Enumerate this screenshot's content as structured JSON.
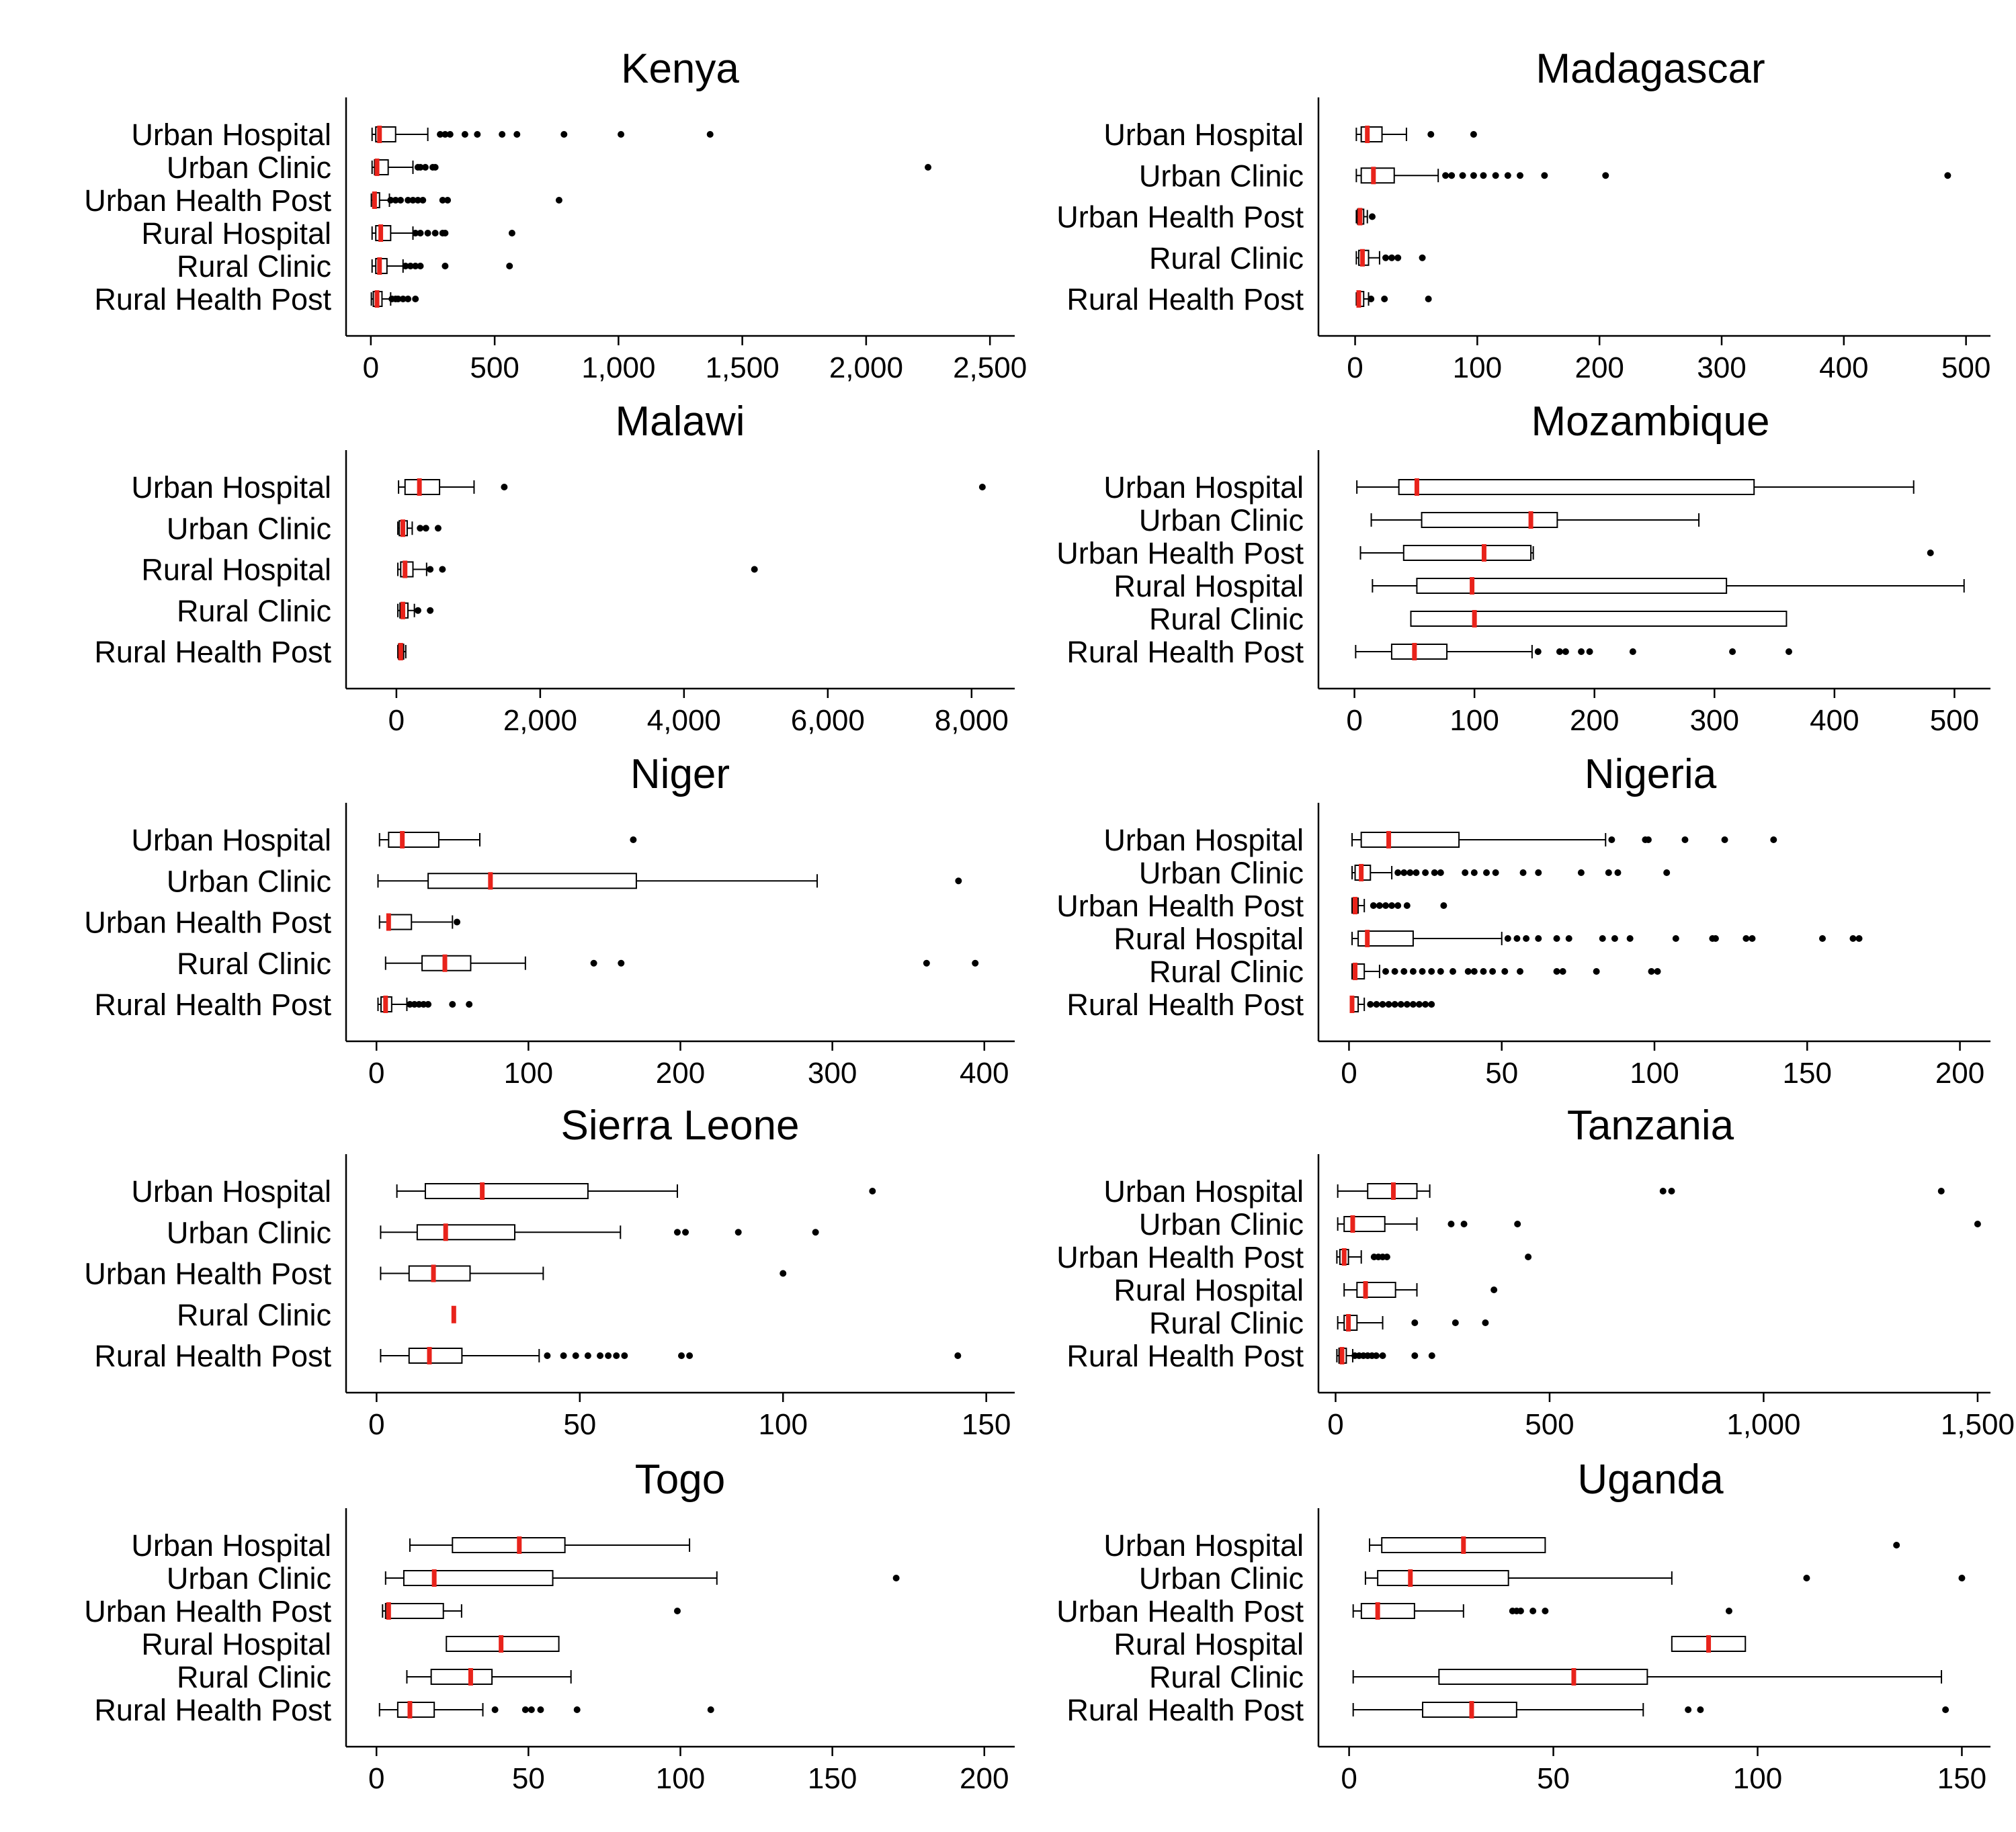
{
  "chart_data": [
    {
      "type": "box",
      "title": "Kenya",
      "xlim": [
        -100,
        2600
      ],
      "ticks": [
        0,
        500,
        1000,
        1500,
        2000,
        2500
      ],
      "tick_labels": [
        "0",
        "500",
        "1,000",
        "1,500",
        "2,000",
        "2,500"
      ],
      "colors": {
        "median": "#e8231b",
        "box": "#000000"
      },
      "series": [
        {
          "name": "Urban Hospital",
          "whisker_low": 5,
          "q1": 20,
          "median": 35,
          "q3": 100,
          "whisker_high": 230,
          "outliers": [
            280,
            300,
            320,
            380,
            430,
            530,
            590,
            780,
            1010,
            1370
          ]
        },
        {
          "name": "Urban Clinic",
          "whisker_low": 5,
          "q1": 15,
          "median": 25,
          "q3": 70,
          "whisker_high": 170,
          "outliers": [
            190,
            200,
            220,
            250,
            260,
            2250
          ]
        },
        {
          "name": "Urban Health Post",
          "whisker_low": 2,
          "q1": 8,
          "median": 15,
          "q3": 35,
          "whisker_high": 75,
          "outliers": [
            80,
            100,
            120,
            150,
            170,
            190,
            210,
            290,
            310,
            760
          ]
        },
        {
          "name": "Rural Hospital",
          "whisker_low": 5,
          "q1": 20,
          "median": 40,
          "q3": 80,
          "whisker_high": 170,
          "outliers": [
            180,
            200,
            230,
            260,
            290,
            300,
            570
          ]
        },
        {
          "name": "Rural Clinic",
          "whisker_low": 5,
          "q1": 20,
          "median": 35,
          "q3": 65,
          "whisker_high": 130,
          "outliers": [
            140,
            160,
            180,
            200,
            300,
            560
          ]
        },
        {
          "name": "Rural Health Post",
          "whisker_low": 2,
          "q1": 10,
          "median": 25,
          "q3": 45,
          "whisker_high": 80,
          "outliers": [
            85,
            100,
            110,
            130,
            150,
            180
          ]
        }
      ]
    },
    {
      "type": "box",
      "title": "Madagascar",
      "xlim": [
        -30,
        520
      ],
      "ticks": [
        0,
        100,
        200,
        300,
        400,
        500
      ],
      "tick_labels": [
        "0",
        "100",
        "200",
        "300",
        "400",
        "500"
      ],
      "colors": {
        "median": "#e8231b",
        "box": "#000000"
      },
      "series": [
        {
          "name": "Urban Hospital",
          "whisker_low": 1,
          "q1": 5,
          "median": 10,
          "q3": 22,
          "whisker_high": 42,
          "outliers": [
            62,
            97
          ]
        },
        {
          "name": "Urban Clinic",
          "whisker_low": 1,
          "q1": 5,
          "median": 15,
          "q3": 32,
          "whisker_high": 68,
          "outliers": [
            74,
            79,
            88,
            97,
            105,
            115,
            125,
            135,
            155,
            205,
            485
          ]
        },
        {
          "name": "Urban Health Post",
          "whisker_low": 1,
          "q1": 2,
          "median": 4,
          "q3": 7,
          "whisker_high": 10,
          "outliers": [
            14
          ]
        },
        {
          "name": "Rural Clinic",
          "whisker_low": 1,
          "q1": 3,
          "median": 6,
          "q3": 11,
          "whisker_high": 20,
          "outliers": [
            25,
            30,
            35,
            55
          ]
        },
        {
          "name": "Rural Health Post",
          "whisker_low": 1,
          "q1": 2,
          "median": 3,
          "q3": 7,
          "whisker_high": 11,
          "outliers": [
            13,
            24,
            60
          ]
        }
      ]
    },
    {
      "type": "box",
      "title": "Malawi",
      "xlim": [
        -700,
        8600
      ],
      "ticks": [
        0,
        2000,
        4000,
        6000,
        8000
      ],
      "tick_labels": [
        "0",
        "2,000",
        "4,000",
        "6,000",
        "8,000"
      ],
      "colors": {
        "median": "#e8231b",
        "box": "#000000"
      },
      "series": [
        {
          "name": "Urban Hospital",
          "whisker_low": 30,
          "q1": 120,
          "median": 320,
          "q3": 600,
          "whisker_high": 1080,
          "outliers": [
            1500,
            8150
          ]
        },
        {
          "name": "Urban Clinic",
          "whisker_low": 20,
          "q1": 40,
          "median": 90,
          "q3": 150,
          "whisker_high": 220,
          "outliers": [
            330,
            410,
            580
          ]
        },
        {
          "name": "Rural Hospital",
          "whisker_low": 20,
          "q1": 60,
          "median": 120,
          "q3": 230,
          "whisker_high": 420,
          "outliers": [
            470,
            640,
            4980
          ]
        },
        {
          "name": "Rural Clinic",
          "whisker_low": 20,
          "q1": 50,
          "median": 90,
          "q3": 160,
          "whisker_high": 250,
          "outliers": [
            300,
            470
          ]
        },
        {
          "name": "Rural Health Post",
          "whisker_low": 20,
          "q1": 30,
          "median": 60,
          "q3": 100,
          "whisker_high": 130,
          "outliers": []
        }
      ]
    },
    {
      "type": "box",
      "title": "Mozambique",
      "xlim": [
        -30,
        530
      ],
      "ticks": [
        0,
        100,
        200,
        300,
        400,
        500
      ],
      "tick_labels": [
        "0",
        "100",
        "200",
        "300",
        "400",
        "500"
      ],
      "colors": {
        "median": "#e8231b",
        "box": "#000000"
      },
      "series": [
        {
          "name": "Urban Hospital",
          "whisker_low": 2,
          "q1": 37,
          "median": 52,
          "q3": 333,
          "whisker_high": 466,
          "outliers": []
        },
        {
          "name": "Urban Clinic",
          "whisker_low": 14,
          "q1": 56,
          "median": 147,
          "q3": 169,
          "whisker_high": 287,
          "outliers": []
        },
        {
          "name": "Urban Health Post",
          "whisker_low": 5,
          "q1": 41,
          "median": 108,
          "q3": 147,
          "whisker_high": 149,
          "outliers": [
            480
          ]
        },
        {
          "name": "Rural Hospital",
          "whisker_low": 15,
          "q1": 52,
          "median": 98,
          "q3": 310,
          "whisker_high": 508,
          "outliers": []
        },
        {
          "name": "Rural Clinic",
          "whisker_low": 47,
          "q1": 47,
          "median": 100,
          "q3": 360,
          "whisker_high": 360,
          "outliers": []
        },
        {
          "name": "Rural Health Post",
          "whisker_low": 1,
          "q1": 31,
          "median": 50,
          "q3": 77,
          "whisker_high": 148,
          "outliers": [
            153,
            171,
            176,
            189,
            196,
            232,
            315,
            362
          ]
        }
      ]
    },
    {
      "type": "box",
      "title": "Niger",
      "xlim": [
        -20,
        420
      ],
      "ticks": [
        0,
        100,
        200,
        300,
        400
      ],
      "tick_labels": [
        "0",
        "100",
        "200",
        "300",
        "400"
      ],
      "colors": {
        "median": "#e8231b",
        "box": "#000000"
      },
      "series": [
        {
          "name": "Urban Hospital",
          "whisker_low": 2,
          "q1": 8,
          "median": 17,
          "q3": 41,
          "whisker_high": 68,
          "outliers": [
            169
          ]
        },
        {
          "name": "Urban Clinic",
          "whisker_low": 1,
          "q1": 34,
          "median": 75,
          "q3": 171,
          "whisker_high": 290,
          "outliers": [
            383
          ]
        },
        {
          "name": "Urban Health Post",
          "whisker_low": 2,
          "q1": 8,
          "median": 8,
          "q3": 23,
          "whisker_high": 50,
          "outliers": [
            53
          ]
        },
        {
          "name": "Rural Clinic",
          "whisker_low": 6,
          "q1": 30,
          "median": 45,
          "q3": 62,
          "whisker_high": 98,
          "outliers": [
            143,
            161,
            362,
            394
          ]
        },
        {
          "name": "Rural Health Post",
          "whisker_low": 1,
          "q1": 3,
          "median": 6,
          "q3": 10,
          "whisker_high": 20,
          "outliers": [
            22,
            25,
            28,
            31,
            34,
            50,
            61
          ]
        }
      ]
    },
    {
      "type": "box",
      "title": "Nigeria",
      "xlim": [
        -10,
        210
      ],
      "ticks": [
        0,
        50,
        100,
        150,
        200
      ],
      "tick_labels": [
        "0",
        "50",
        "100",
        "150",
        "200"
      ],
      "colors": {
        "median": "#e8231b",
        "box": "#000000"
      },
      "series": [
        {
          "name": "Urban Hospital",
          "whisker_low": 1,
          "q1": 4,
          "median": 13,
          "q3": 36,
          "whisker_high": 84,
          "outliers": [
            86,
            97,
            98,
            110,
            123,
            139
          ]
        },
        {
          "name": "Urban Clinic",
          "whisker_low": 1,
          "q1": 2,
          "median": 4,
          "q3": 7,
          "whisker_high": 14,
          "outliers": [
            16,
            18,
            20,
            22,
            25,
            28,
            30,
            38,
            41,
            45,
            48,
            57,
            62,
            76,
            85,
            88,
            104
          ]
        },
        {
          "name": "Urban Health Post",
          "whisker_low": 1,
          "q1": 1,
          "median": 2,
          "q3": 3,
          "whisker_high": 5,
          "outliers": [
            8,
            10,
            12,
            14,
            16,
            19,
            31
          ]
        },
        {
          "name": "Rural Hospital",
          "whisker_low": 1,
          "q1": 3,
          "median": 6,
          "q3": 21,
          "whisker_high": 50,
          "outliers": [
            52,
            55,
            58,
            62,
            68,
            72,
            83,
            87,
            92,
            107,
            119,
            120,
            130,
            132,
            155,
            165,
            167
          ]
        },
        {
          "name": "Rural Clinic",
          "whisker_low": 1,
          "q1": 1,
          "median": 2,
          "q3": 5,
          "whisker_high": 10,
          "outliers": [
            12,
            15,
            18,
            21,
            24,
            27,
            30,
            34,
            39,
            41,
            44,
            47,
            51,
            56,
            68,
            70,
            81,
            99,
            101
          ]
        },
        {
          "name": "Rural Health Post",
          "whisker_low": 1,
          "q1": 1,
          "median": 1,
          "q3": 3,
          "whisker_high": 5,
          "outliers": [
            7,
            9,
            11,
            13,
            15,
            17,
            19,
            21,
            23,
            25,
            27
          ]
        }
      ]
    },
    {
      "type": "box",
      "title": "Sierra Leone",
      "xlim": [
        -7.5,
        157
      ],
      "ticks": [
        0,
        50,
        100,
        150
      ],
      "tick_labels": [
        "0",
        "50",
        "100",
        "150"
      ],
      "colors": {
        "median": "#e8231b",
        "box": "#000000"
      },
      "series": [
        {
          "name": "Urban Hospital",
          "whisker_low": 5,
          "q1": 12,
          "median": 26,
          "q3": 52,
          "whisker_high": 74,
          "outliers": [
            122
          ]
        },
        {
          "name": "Urban Clinic",
          "whisker_low": 1,
          "q1": 10,
          "median": 17,
          "q3": 34,
          "whisker_high": 60,
          "outliers": [
            74,
            76,
            89,
            108
          ]
        },
        {
          "name": "Urban Health Post",
          "whisker_low": 1,
          "q1": 8,
          "median": 14,
          "q3": 23,
          "whisker_high": 41,
          "outliers": [
            100
          ]
        },
        {
          "name": "Rural Clinic",
          "whisker_low": 19,
          "q1": 19,
          "median": 19,
          "q3": 19,
          "whisker_high": 19,
          "outliers": []
        },
        {
          "name": "Rural Health Post",
          "whisker_low": 1,
          "q1": 8,
          "median": 13,
          "q3": 21,
          "whisker_high": 40,
          "outliers": [
            42,
            46,
            49,
            52,
            55,
            57,
            59,
            61,
            75,
            77,
            143
          ]
        }
      ]
    },
    {
      "type": "box",
      "title": "Tanzania",
      "xlim": [
        -40,
        1530
      ],
      "ticks": [
        0,
        500,
        1000,
        1500
      ],
      "tick_labels": [
        "0",
        "500",
        "1,000",
        "1,500"
      ],
      "colors": {
        "median": "#e8231b",
        "box": "#000000"
      },
      "series": [
        {
          "name": "Urban Hospital",
          "whisker_low": 5,
          "q1": 75,
          "median": 135,
          "q3": 190,
          "whisker_high": 220,
          "outliers": [
            765,
            785,
            1415
          ]
        },
        {
          "name": "Urban Clinic",
          "whisker_low": 5,
          "q1": 20,
          "median": 40,
          "q3": 115,
          "whisker_high": 190,
          "outliers": [
            270,
            300,
            425,
            1500
          ]
        },
        {
          "name": "Urban Health Post",
          "whisker_low": 3,
          "q1": 10,
          "median": 20,
          "q3": 30,
          "whisker_high": 60,
          "outliers": [
            90,
            100,
            110,
            120,
            450
          ]
        },
        {
          "name": "Rural Hospital",
          "whisker_low": 20,
          "q1": 50,
          "median": 70,
          "q3": 140,
          "whisker_high": 190,
          "outliers": [
            370
          ]
        },
        {
          "name": "Rural Clinic",
          "whisker_low": 5,
          "q1": 20,
          "median": 30,
          "q3": 50,
          "whisker_high": 110,
          "outliers": [
            185,
            280,
            350
          ]
        },
        {
          "name": "Rural Health Post",
          "whisker_low": 3,
          "q1": 8,
          "median": 15,
          "q3": 25,
          "whisker_high": 40,
          "outliers": [
            45,
            55,
            65,
            75,
            85,
            95,
            110,
            185,
            225
          ]
        }
      ]
    },
    {
      "type": "box",
      "title": "Togo",
      "xlim": [
        -10,
        210
      ],
      "ticks": [
        0,
        50,
        100,
        150,
        200
      ],
      "tick_labels": [
        "0",
        "50",
        "100",
        "150",
        "200"
      ],
      "colors": {
        "median": "#e8231b",
        "box": "#000000"
      },
      "series": [
        {
          "name": "Urban Hospital",
          "whisker_low": 11,
          "q1": 25,
          "median": 47,
          "q3": 62,
          "whisker_high": 103,
          "outliers": []
        },
        {
          "name": "Urban Clinic",
          "whisker_low": 3,
          "q1": 9,
          "median": 19,
          "q3": 58,
          "whisker_high": 112,
          "outliers": [
            171
          ]
        },
        {
          "name": "Urban Health Post",
          "whisker_low": 2,
          "q1": 3,
          "median": 4,
          "q3": 22,
          "whisker_high": 28,
          "outliers": [
            99
          ]
        },
        {
          "name": "Rural Hospital",
          "whisker_low": 23,
          "q1": 23,
          "median": 41,
          "q3": 60,
          "whisker_high": 60,
          "outliers": []
        },
        {
          "name": "Rural Clinic",
          "whisker_low": 10,
          "q1": 18,
          "median": 31,
          "q3": 38,
          "whisker_high": 64,
          "outliers": []
        },
        {
          "name": "Rural Health Post",
          "whisker_low": 1,
          "q1": 7,
          "median": 11,
          "q3": 19,
          "whisker_high": 35,
          "outliers": [
            39,
            49,
            51,
            54,
            66,
            110
          ]
        }
      ]
    },
    {
      "type": "box",
      "title": "Uganda",
      "xlim": [
        -7.5,
        157
      ],
      "ticks": [
        0,
        50,
        100,
        150
      ],
      "tick_labels": [
        "0",
        "50",
        "100",
        "150"
      ],
      "colors": {
        "median": "#e8231b",
        "box": "#000000"
      },
      "series": [
        {
          "name": "Urban Hospital",
          "whisker_low": 5,
          "q1": 8,
          "median": 28,
          "q3": 48,
          "whisker_high": 48,
          "outliers": [
            134
          ]
        },
        {
          "name": "Urban Clinic",
          "whisker_low": 4,
          "q1": 7,
          "median": 15,
          "q3": 39,
          "whisker_high": 79,
          "outliers": [
            112,
            150
          ]
        },
        {
          "name": "Urban Health Post",
          "whisker_low": 1,
          "q1": 3,
          "median": 7,
          "q3": 16,
          "whisker_high": 28,
          "outliers": [
            40,
            41,
            42,
            45,
            48,
            93
          ]
        },
        {
          "name": "Rural Hospital",
          "whisker_low": 79,
          "q1": 79,
          "median": 88,
          "q3": 97,
          "whisker_high": 97,
          "outliers": []
        },
        {
          "name": "Rural Clinic",
          "whisker_low": 1,
          "q1": 22,
          "median": 55,
          "q3": 73,
          "whisker_high": 145,
          "outliers": []
        },
        {
          "name": "Rural Health Post",
          "whisker_low": 1,
          "q1": 18,
          "median": 30,
          "q3": 41,
          "whisker_high": 72,
          "outliers": [
            83,
            86,
            146
          ]
        }
      ]
    }
  ]
}
